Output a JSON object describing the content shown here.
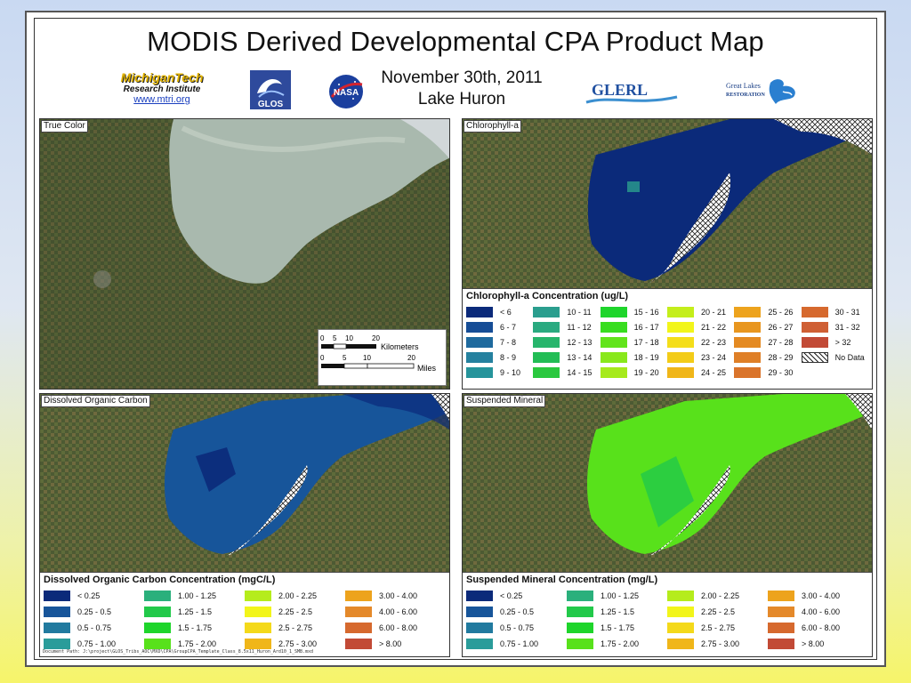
{
  "map": {
    "title": "MODIS Derived Developmental CPA Product Map",
    "date": "November 30th, 2011",
    "region": "Lake Huron",
    "logos": {
      "mtu_name": "MichiganTech",
      "mtu_sub": "Research Institute",
      "mtu_url": "www.mtri.org",
      "glos": "GLOS",
      "nasa": "NASA",
      "glerl": "GLERL",
      "glr_line1": "Great Lakes",
      "glr_line2": "RESTORATION"
    },
    "doc_path": "Document Path: J:\\project\\GLOS_Tribs_AOC\\MXD\\CPA\\GroupCPA_Template_Class_8.5x11_Huron_Ard10_1_SMB.mxd"
  },
  "panels": {
    "true_color": {
      "label": "True Color",
      "scale": {
        "km_ticks": [
          "0",
          "5",
          "10",
          "20"
        ],
        "km_unit": "Kilometers",
        "mi_ticks": [
          "0",
          "5",
          "10",
          "20"
        ],
        "mi_unit": "Miles"
      }
    },
    "chlorophyll": {
      "label": "Chlorophyll-a",
      "legend_title": "Chlorophyll-a Concentration (ug/L)",
      "items": [
        {
          "label": "< 6",
          "color": "#0b2a7a"
        },
        {
          "label": "6 - 7",
          "color": "#164d96"
        },
        {
          "label": "7 - 8",
          "color": "#1f6a9e"
        },
        {
          "label": "8 - 9",
          "color": "#25819f"
        },
        {
          "label": "9 - 10",
          "color": "#26949b"
        },
        {
          "label": "10 - 11",
          "color": "#2a9e8e"
        },
        {
          "label": "11 - 12",
          "color": "#2aaa80"
        },
        {
          "label": "12 - 13",
          "color": "#27b56c"
        },
        {
          "label": "13 - 14",
          "color": "#22bd55"
        },
        {
          "label": "14 - 15",
          "color": "#2ac83f"
        },
        {
          "label": "15 - 16",
          "color": "#1ed52b"
        },
        {
          "label": "16 - 17",
          "color": "#38dd1f"
        },
        {
          "label": "17 - 18",
          "color": "#62e41b"
        },
        {
          "label": "18 - 19",
          "color": "#89e81b"
        },
        {
          "label": "19 - 20",
          "color": "#a6ea1c"
        },
        {
          "label": "20 - 21",
          "color": "#c4ee1b"
        },
        {
          "label": "21 - 22",
          "color": "#f2f51a"
        },
        {
          "label": "22 - 23",
          "color": "#f4de1a"
        },
        {
          "label": "23 - 24",
          "color": "#f3cc18"
        },
        {
          "label": "24 - 25",
          "color": "#f0b619"
        },
        {
          "label": "25 - 26",
          "color": "#eda31d"
        },
        {
          "label": "26 - 27",
          "color": "#e8961f"
        },
        {
          "label": "27 - 28",
          "color": "#e48a22"
        },
        {
          "label": "28 - 29",
          "color": "#df7f27"
        },
        {
          "label": "29 - 30",
          "color": "#da742b"
        },
        {
          "label": "30 - 31",
          "color": "#d6692e"
        },
        {
          "label": "31 - 32",
          "color": "#cf5f34"
        },
        {
          "label": "> 32",
          "color": "#c24a36"
        },
        {
          "label": "No Data",
          "color": "nodata"
        }
      ]
    },
    "doc": {
      "label": "Dissolved Organic Carbon",
      "legend_title": "Dissolved Organic Carbon Concentration (mgC/L)",
      "items": [
        {
          "label": "< 0.25",
          "color": "#0b2a7a"
        },
        {
          "label": "0.25 - 0.5",
          "color": "#17559a"
        },
        {
          "label": "0.5 - 0.75",
          "color": "#217a9f"
        },
        {
          "label": "0.75 - 1.00",
          "color": "#2a9c9a"
        },
        {
          "label": "1.00 - 1.25",
          "color": "#2ab07c"
        },
        {
          "label": "1.25 - 1.5",
          "color": "#22c94a"
        },
        {
          "label": "1.5 - 1.75",
          "color": "#1ed52b"
        },
        {
          "label": "1.75 - 2.00",
          "color": "#58e11b"
        },
        {
          "label": "2.00 - 2.25",
          "color": "#b5ec1c"
        },
        {
          "label": "2.25 - 2.5",
          "color": "#f2f51a"
        },
        {
          "label": "2.5 - 2.75",
          "color": "#f4d91a"
        },
        {
          "label": "2.75 - 3.00",
          "color": "#f0b619"
        },
        {
          "label": "3.00 - 4.00",
          "color": "#eda31d"
        },
        {
          "label": "4.00 - 6.00",
          "color": "#e4892a"
        },
        {
          "label": "6.00 - 8.00",
          "color": "#d6692e"
        },
        {
          "label": "> 8.00",
          "color": "#c24a36"
        }
      ]
    },
    "sm": {
      "label": "Suspended Mineral",
      "legend_title": "Suspended Mineral Concentration (mg/L)",
      "items": [
        {
          "label": "< 0.25",
          "color": "#0b2a7a"
        },
        {
          "label": "0.25 - 0.5",
          "color": "#17559a"
        },
        {
          "label": "0.5 - 0.75",
          "color": "#217a9f"
        },
        {
          "label": "0.75 - 1.00",
          "color": "#2a9c9a"
        },
        {
          "label": "1.00 - 1.25",
          "color": "#2ab07c"
        },
        {
          "label": "1.25 - 1.5",
          "color": "#22c94a"
        },
        {
          "label": "1.5 - 1.75",
          "color": "#1ed52b"
        },
        {
          "label": "1.75 - 2.00",
          "color": "#58e11b"
        },
        {
          "label": "2.00 - 2.25",
          "color": "#b5ec1c"
        },
        {
          "label": "2.25 - 2.5",
          "color": "#f2f51a"
        },
        {
          "label": "2.5 - 2.75",
          "color": "#f4d91a"
        },
        {
          "label": "2.75 - 3.00",
          "color": "#f0b619"
        },
        {
          "label": "3.00 - 4.00",
          "color": "#eda31d"
        },
        {
          "label": "4.00 - 6.00",
          "color": "#e4892a"
        },
        {
          "label": "6.00 - 8.00",
          "color": "#d6692e"
        },
        {
          "label": "> 8.00",
          "color": "#c24a36"
        }
      ]
    }
  }
}
